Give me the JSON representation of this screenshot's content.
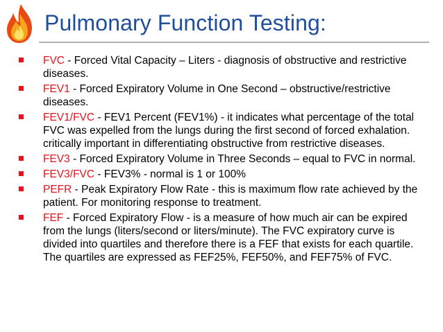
{
  "slide": {
    "title": "Pulmonary Function Testing:",
    "logo_icon": "flame-icon",
    "colors": {
      "title": "#1f4e9c",
      "term": "#e8121b",
      "bullet": "#e8121b",
      "text": "#000000"
    },
    "bullets": [
      {
        "term": "FVC",
        "text": " - Forced Vital Capacity – Liters - diagnosis of obstructive and restrictive diseases."
      },
      {
        "term": "FEV1",
        "text": " - Forced Expiratory Volume in One Second – obstructive/restrictive diseases."
      },
      {
        "term": "FEV1/FVC",
        "text": " - FEV1 Percent (FEV1%) - it indicates what percentage of the total FVC was expelled from the lungs during the first second of forced exhalation. critically important in differentiating obstructive from restrictive diseases."
      },
      {
        "term": "FEV3",
        "text": " - Forced Expiratory Volume in Three Seconds – equal to FVC in normal."
      },
      {
        "term": "FEV3/FVC",
        "text": " - FEV3% - normal is 1 or 100%"
      },
      {
        "term": "PEFR",
        "text": " - Peak Expiratory Flow Rate - this is maximum flow rate achieved by the patient. For monitoring response to treatment."
      },
      {
        "term": "FEF",
        "text": " - Forced Expiratory Flow - is a measure of how much air can be expired from the lungs (liters/second or liters/minute). The FVC expiratory curve is divided into quartiles and therefore there is a FEF that exists for each quartile. The quartiles are expressed as FEF25%, FEF50%, and FEF75% of FVC."
      }
    ]
  }
}
